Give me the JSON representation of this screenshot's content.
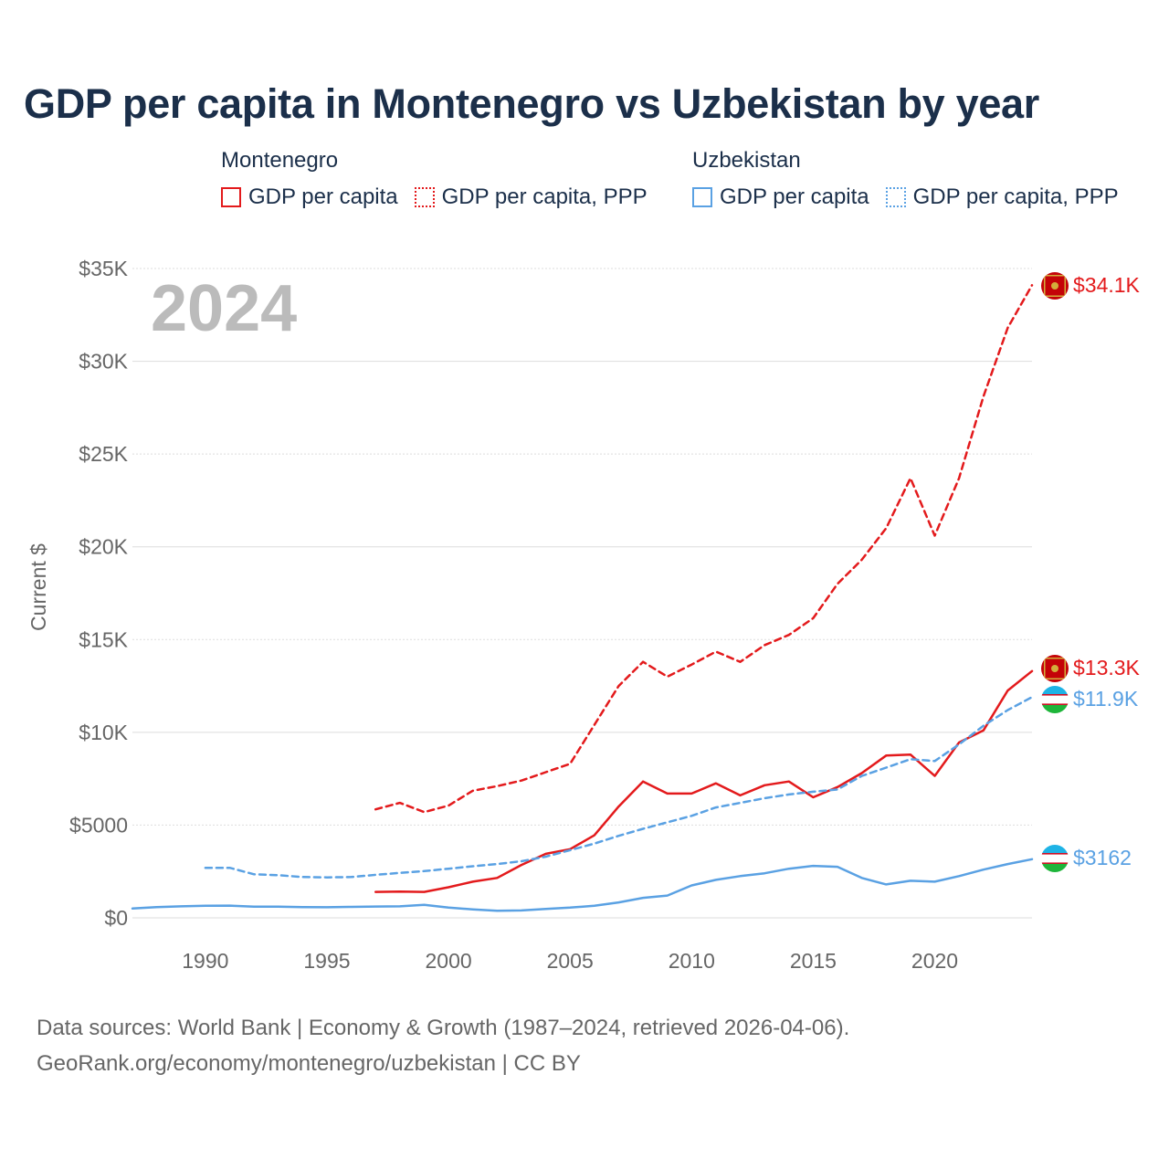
{
  "title": "GDP per capita in Montenegro vs Uzbekistan by year",
  "legend": {
    "groups": [
      {
        "name": "Montenegro",
        "items": [
          "GDP per capita",
          "GDP per capita, PPP"
        ],
        "color": "#e31a1c"
      },
      {
        "name": "Uzbekistan",
        "items": [
          "GDP per capita",
          "GDP per capita, PPP"
        ],
        "color": "#5aa1e3"
      }
    ]
  },
  "year_label": "2024",
  "footer": {
    "line1": "Data sources: World Bank | Economy & Growth (1987–2024, retrieved 2026-04-06).",
    "line2": "GeoRank.org/economy/montenegro/uzbekistan | CC BY"
  },
  "chart_data": {
    "type": "line",
    "title": "GDP per capita in Montenegro vs Uzbekistan by year",
    "xlabel": "",
    "ylabel": "Current $",
    "xlim": [
      1987,
      2024
    ],
    "ylim": [
      0,
      35000
    ],
    "xticks": [
      1990,
      1995,
      2000,
      2005,
      2010,
      2015,
      2020
    ],
    "xtick_labels": [
      "1990",
      "1995",
      "2000",
      "2005",
      "2010",
      "2015",
      "2020"
    ],
    "yticks": [
      0,
      5000,
      10000,
      15000,
      20000,
      25000,
      30000,
      35000
    ],
    "ytick_labels": [
      "$0",
      "$5000",
      "$10K",
      "$15K",
      "$20K",
      "$25K",
      "$30K",
      "$35K"
    ],
    "series": [
      {
        "name": "Montenegro GDP per capita",
        "color": "#e31a1c",
        "style": "solid",
        "end_label": "$13.3K",
        "x": [
          1997,
          1998,
          1999,
          2000,
          2001,
          2002,
          2003,
          2004,
          2005,
          2006,
          2007,
          2008,
          2009,
          2010,
          2011,
          2012,
          2013,
          2014,
          2015,
          2016,
          2017,
          2018,
          2019,
          2020,
          2021,
          2022,
          2023,
          2024
        ],
        "values": [
          1400,
          1420,
          1400,
          1650,
          1950,
          2150,
          2850,
          3450,
          3700,
          4450,
          6000,
          7350,
          6700,
          6700,
          7250,
          6600,
          7150,
          7350,
          6500,
          7050,
          7800,
          8750,
          8800,
          7650,
          9450,
          10100,
          12250,
          13300
        ]
      },
      {
        "name": "Montenegro GDP per capita, PPP",
        "color": "#e31a1c",
        "style": "dashed",
        "end_label": "$34.1K",
        "x": [
          1997,
          1998,
          1999,
          2000,
          2001,
          2002,
          2003,
          2004,
          2005,
          2006,
          2007,
          2008,
          2009,
          2010,
          2011,
          2012,
          2013,
          2014,
          2015,
          2016,
          2017,
          2018,
          2019,
          2020,
          2021,
          2022,
          2023,
          2024
        ],
        "values": [
          5850,
          6200,
          5700,
          6050,
          6850,
          7100,
          7400,
          7850,
          8300,
          10400,
          12500,
          13800,
          13000,
          13650,
          14350,
          13800,
          14700,
          15250,
          16150,
          18000,
          19300,
          21000,
          23700,
          20600,
          23700,
          28100,
          31800,
          34100
        ]
      },
      {
        "name": "Uzbekistan GDP per capita",
        "color": "#5aa1e3",
        "style": "solid",
        "end_label": "$3162",
        "x": [
          1987,
          1988,
          1989,
          1990,
          1991,
          1992,
          1993,
          1994,
          1995,
          1996,
          1997,
          1998,
          1999,
          2000,
          2001,
          2002,
          2003,
          2004,
          2005,
          2006,
          2007,
          2008,
          2009,
          2010,
          2011,
          2012,
          2013,
          2014,
          2015,
          2016,
          2017,
          2018,
          2019,
          2020,
          2021,
          2022,
          2023,
          2024
        ],
        "values": [
          500,
          580,
          620,
          650,
          660,
          600,
          600,
          580,
          570,
          590,
          610,
          620,
          700,
          550,
          460,
          380,
          400,
          480,
          550,
          650,
          830,
          1080,
          1200,
          1750,
          2050,
          2250,
          2400,
          2650,
          2800,
          2750,
          2150,
          1800,
          2000,
          1950,
          2250,
          2600,
          2900,
          3162
        ]
      },
      {
        "name": "Uzbekistan GDP per capita, PPP",
        "color": "#5aa1e3",
        "style": "dashed",
        "end_label": "$11.9K",
        "x": [
          1990,
          1991,
          1992,
          1993,
          1994,
          1995,
          1996,
          1997,
          1998,
          1999,
          2000,
          2001,
          2002,
          2003,
          2004,
          2005,
          2006,
          2007,
          2008,
          2009,
          2010,
          2011,
          2012,
          2013,
          2014,
          2015,
          2016,
          2017,
          2018,
          2019,
          2020,
          2021,
          2022,
          2023,
          2024
        ],
        "values": [
          2700,
          2700,
          2350,
          2300,
          2200,
          2180,
          2200,
          2320,
          2420,
          2520,
          2650,
          2780,
          2900,
          3050,
          3300,
          3650,
          4000,
          4420,
          4800,
          5150,
          5500,
          5950,
          6200,
          6450,
          6650,
          6800,
          6920,
          7650,
          8100,
          8550,
          8450,
          9350,
          10350,
          11200,
          11900
        ]
      }
    ]
  }
}
